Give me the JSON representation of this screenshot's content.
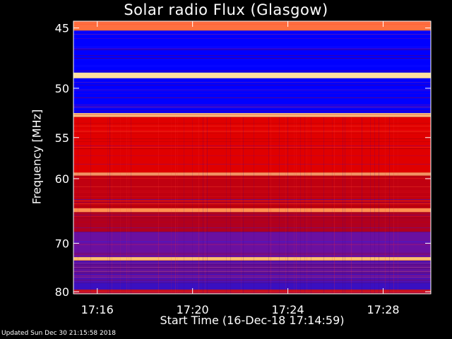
{
  "title": "Solar radio Flux (Glasgow)",
  "updated": "Updated Sun Dec 30 21:15:58 2018",
  "chart_data": {
    "type": "heatmap",
    "title": "Solar radio Flux (Glasgow)",
    "xlabel": "Start Time (16-Dec-18 17:14:59)",
    "ylabel": "Frequency [MHz]",
    "x_ticks": [
      {
        "label": "17:16",
        "minutes": 16
      },
      {
        "label": "17:20",
        "minutes": 20
      },
      {
        "label": "17:24",
        "minutes": 24
      },
      {
        "label": "17:28",
        "minutes": 28
      }
    ],
    "x_range_minutes": [
      15.0,
      30.0
    ],
    "y_ticks": [
      {
        "label": "45",
        "value": 45
      },
      {
        "label": "50",
        "value": 50
      },
      {
        "label": "55",
        "value": 55
      },
      {
        "label": "60",
        "value": 60
      },
      {
        "label": "70",
        "value": 70
      },
      {
        "label": "80",
        "value": 80
      }
    ],
    "y_range": [
      44.5,
      80.5
    ],
    "y_scale": "reciprocal",
    "colormap": [
      "#00006a",
      "#0000ff",
      "#5a00a0",
      "#b00000",
      "#ff0000",
      "#ff8040",
      "#ffe0a0"
    ],
    "bands": [
      {
        "from": 44.5,
        "to": 45.2,
        "color": "#ff7040"
      },
      {
        "from": 45.2,
        "to": 48.6,
        "color": "#0000ff"
      },
      {
        "from": 48.6,
        "to": 49.1,
        "color": "#ffe0a0"
      },
      {
        "from": 49.1,
        "to": 52.4,
        "color": "#0000ff"
      },
      {
        "from": 52.4,
        "to": 52.8,
        "color": "#ffc080"
      },
      {
        "from": 52.8,
        "to": 59.2,
        "color": "#e00000"
      },
      {
        "from": 59.2,
        "to": 59.6,
        "color": "#ffa060"
      },
      {
        "from": 59.6,
        "to": 64.2,
        "color": "#c00010"
      },
      {
        "from": 64.2,
        "to": 64.8,
        "color": "#ff9050"
      },
      {
        "from": 64.8,
        "to": 68.0,
        "color": "#b00020"
      },
      {
        "from": 68.0,
        "to": 72.6,
        "color": "#6a10a0"
      },
      {
        "from": 72.6,
        "to": 73.3,
        "color": "#ffc070"
      },
      {
        "from": 73.3,
        "to": 78.0,
        "color": "#5010b0"
      },
      {
        "from": 78.0,
        "to": 79.5,
        "color": "#3a10c0"
      },
      {
        "from": 79.5,
        "to": 80.5,
        "color": "#c01020"
      }
    ]
  }
}
